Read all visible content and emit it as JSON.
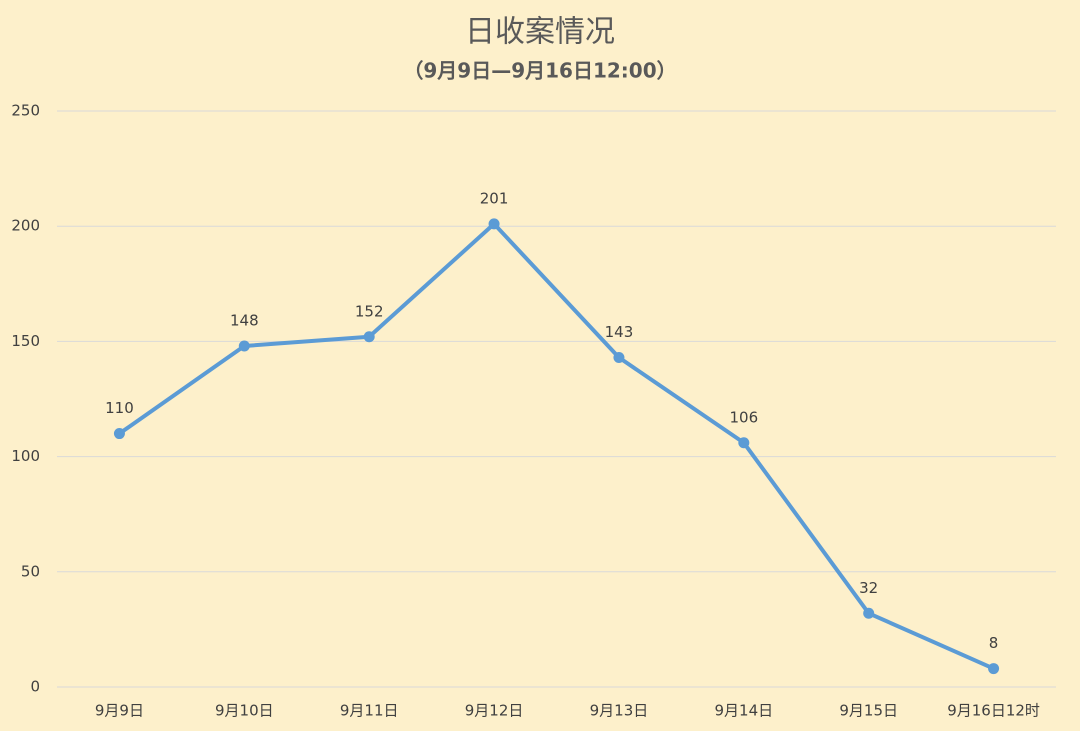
{
  "chart_data": {
    "type": "line",
    "title": "日收案情况",
    "subtitle": "（9月9日—9月16日12:00）",
    "categories": [
      "9月9日",
      "9月10日",
      "9月11日",
      "9月12日",
      "9月13日",
      "9月14日",
      "9月15日",
      "9月16日12时"
    ],
    "values": [
      110,
      148,
      152,
      201,
      143,
      106,
      32,
      8
    ],
    "color": "#5b9bd5",
    "ylim": [
      0,
      250
    ],
    "yticks": [
      0,
      50,
      100,
      150,
      200,
      250
    ],
    "grid": true
  }
}
